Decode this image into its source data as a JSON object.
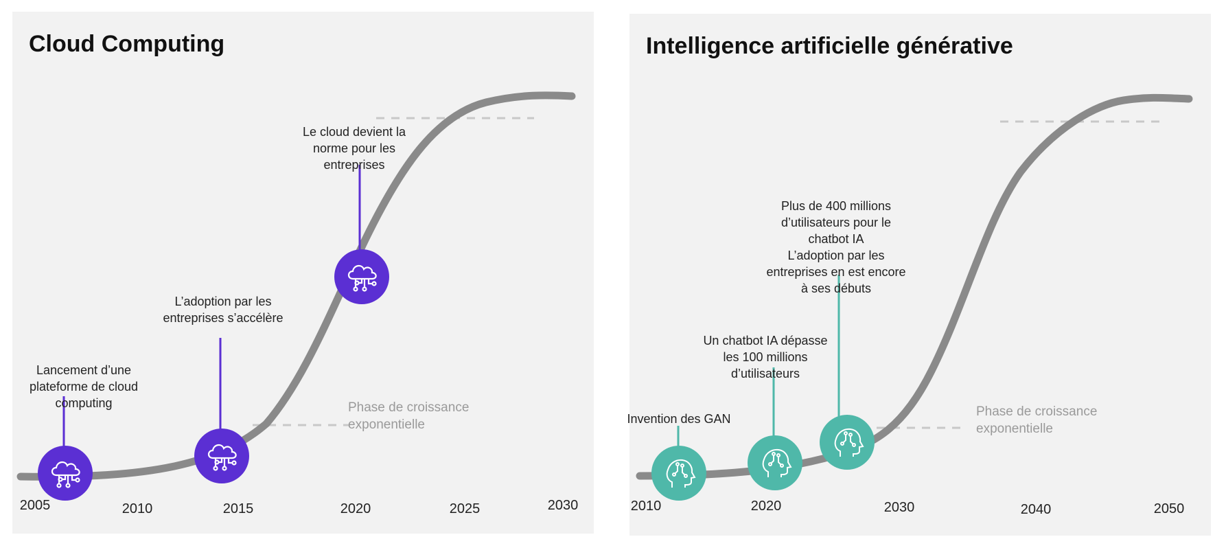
{
  "colors": {
    "panel_bg": "#f2f2f2",
    "curve": "#8a8a8a",
    "dash": "#c8c8c8",
    "cloud_accent": "#5b2fd3",
    "ai_accent": "#4fb8a9",
    "phase_text": "#9a9a9a"
  },
  "left_panel": {
    "title": "Cloud Computing",
    "phase_label": [
      "Phase de croissance",
      "exponentielle"
    ],
    "icon": "cloud-network-icon",
    "ticks": [
      "2005",
      "2010",
      "2015",
      "2020",
      "2025",
      "2030"
    ],
    "milestones": [
      {
        "year": 2006,
        "lines": [
          "Lancement d’une",
          "plateforme de cloud",
          "computing"
        ]
      },
      {
        "year": 2015,
        "lines": [
          "L’adoption par les",
          "entreprises s’accélère"
        ]
      },
      {
        "year": 2020,
        "lines": [
          "Le cloud devient la",
          "norme pour les",
          "entreprises"
        ]
      }
    ]
  },
  "right_panel": {
    "title": "Intelligence artificielle générative",
    "phase_label": [
      "Phase de croissance",
      "exponentielle"
    ],
    "icon": "ai-head-icon",
    "ticks": [
      "2010",
      "2020",
      "2030",
      "2040",
      "2050"
    ],
    "milestones": [
      {
        "year": 2014,
        "lines": [
          "Invention des GAN"
        ]
      },
      {
        "year": 2022,
        "lines": [
          "Un chatbot IA dépasse",
          "les 100 millions",
          "d’utilisateurs"
        ]
      },
      {
        "year": 2025,
        "lines": [
          "Plus de 400 millions",
          "d’utilisateurs pour le",
          "chatbot IA",
          "L’adoption par les",
          "entreprises en est encore",
          "à ses débuts"
        ]
      }
    ]
  }
}
